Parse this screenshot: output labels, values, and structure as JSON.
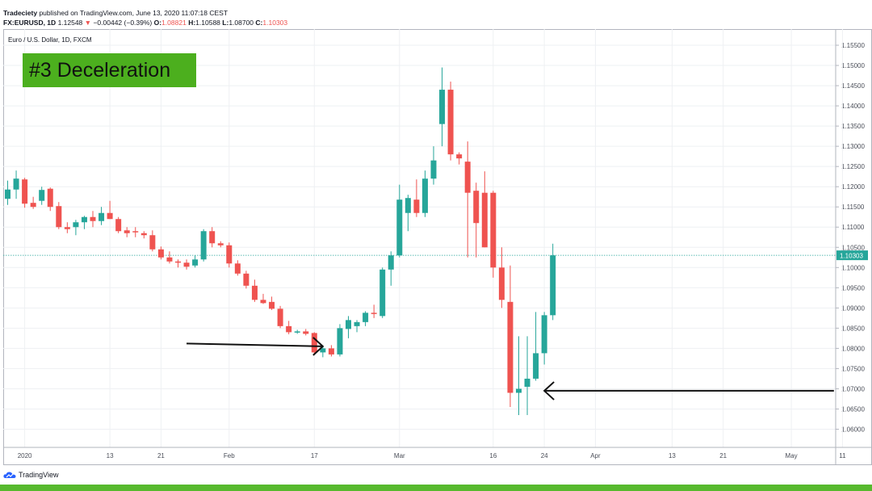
{
  "header": {
    "line1_author": "Tradeciety",
    "line1_rest": "published on TradingView.com, June 13, 2020 11:07:18 CEST",
    "symbol": "FX:EURUSD, 1D",
    "last": "1.12548",
    "change": "−0.00442 (−0.39%)",
    "o_label": "O:",
    "o": "1.08821",
    "h_label": "H:",
    "h": "1.10588",
    "l_label": "L:",
    "l": "1.08700",
    "c_label": "C:",
    "c": "1.10303"
  },
  "symbol_bar": "Euro / U.S. Dollar, 1D, FXCM",
  "annotation_label": "#3 Deceleration",
  "footer_brand": "TradingView",
  "colors": {
    "up": "#26a69a",
    "down": "#ef5350",
    "price_line": "#26a69a",
    "label_bg": "#4caf1e",
    "strip": "#57b92e"
  },
  "chart_data": {
    "type": "candlestick",
    "title": "Euro / U.S. Dollar, 1D, FXCM",
    "ylim": [
      1.0555,
      1.159
    ],
    "y_ticks": [
      "1.15500",
      "1.15000",
      "1.14500",
      "1.14000",
      "1.13500",
      "1.13000",
      "1.12500",
      "1.12000",
      "1.11500",
      "1.11000",
      "1.10500",
      "1.10000",
      "1.09500",
      "1.09000",
      "1.08500",
      "1.08000",
      "1.07500",
      "1.07000",
      "1.06500",
      "1.06000"
    ],
    "x_ticks": [
      {
        "i": 2,
        "label": "2020"
      },
      {
        "i": 12,
        "label": "13"
      },
      {
        "i": 18,
        "label": "21"
      },
      {
        "i": 26,
        "label": "Feb"
      },
      {
        "i": 36,
        "label": "17"
      },
      {
        "i": 46,
        "label": "Mar"
      },
      {
        "i": 57,
        "label": "16"
      },
      {
        "i": 63,
        "label": "24"
      },
      {
        "i": 69,
        "label": "Apr"
      },
      {
        "i": 78,
        "label": "13"
      },
      {
        "i": 84,
        "label": "21"
      },
      {
        "i": 92,
        "label": "May"
      },
      {
        "i": 98,
        "label": "11"
      }
    ],
    "last_price_label": "1.10303",
    "last_price": 1.10303,
    "candles": [
      {
        "o": 1.117,
        "h": 1.1215,
        "l": 1.1155,
        "c": 1.1193
      },
      {
        "o": 1.1193,
        "h": 1.124,
        "l": 1.117,
        "c": 1.122
      },
      {
        "o": 1.1218,
        "h": 1.1222,
        "l": 1.1148,
        "c": 1.1158
      },
      {
        "o": 1.116,
        "h": 1.1175,
        "l": 1.1145,
        "c": 1.115
      },
      {
        "o": 1.1165,
        "h": 1.12,
        "l": 1.1155,
        "c": 1.1192
      },
      {
        "o": 1.1195,
        "h": 1.1198,
        "l": 1.114,
        "c": 1.115
      },
      {
        "o": 1.1152,
        "h": 1.1162,
        "l": 1.1095,
        "c": 1.11
      },
      {
        "o": 1.11,
        "h": 1.1112,
        "l": 1.1085,
        "c": 1.1095
      },
      {
        "o": 1.11,
        "h": 1.1118,
        "l": 1.108,
        "c": 1.1112
      },
      {
        "o": 1.1112,
        "h": 1.1128,
        "l": 1.1095,
        "c": 1.1125
      },
      {
        "o": 1.1125,
        "h": 1.114,
        "l": 1.11,
        "c": 1.1115
      },
      {
        "o": 1.1115,
        "h": 1.115,
        "l": 1.1105,
        "c": 1.1135
      },
      {
        "o": 1.1135,
        "h": 1.1165,
        "l": 1.112,
        "c": 1.112
      },
      {
        "o": 1.112,
        "h": 1.1125,
        "l": 1.1085,
        "c": 1.109
      },
      {
        "o": 1.1092,
        "h": 1.11,
        "l": 1.1075,
        "c": 1.1085
      },
      {
        "o": 1.109,
        "h": 1.11,
        "l": 1.1075,
        "c": 1.1088
      },
      {
        "o": 1.1085,
        "h": 1.109,
        "l": 1.1072,
        "c": 1.108
      },
      {
        "o": 1.108,
        "h": 1.1092,
        "l": 1.104,
        "c": 1.1045
      },
      {
        "o": 1.1045,
        "h": 1.1052,
        "l": 1.102,
        "c": 1.1025
      },
      {
        "o": 1.1025,
        "h": 1.104,
        "l": 1.101,
        "c": 1.1015
      },
      {
        "o": 1.1015,
        "h": 1.102,
        "l": 1.1,
        "c": 1.1012
      },
      {
        "o": 1.1012,
        "h": 1.102,
        "l": 1.0995,
        "c": 1.1002
      },
      {
        "o": 1.1005,
        "h": 1.103,
        "l": 1.1,
        "c": 1.102
      },
      {
        "o": 1.102,
        "h": 1.1095,
        "l": 1.1015,
        "c": 1.109
      },
      {
        "o": 1.109,
        "h": 1.11,
        "l": 1.105,
        "c": 1.106
      },
      {
        "o": 1.106,
        "h": 1.1065,
        "l": 1.105,
        "c": 1.1055
      },
      {
        "o": 1.1055,
        "h": 1.1062,
        "l": 1.1,
        "c": 1.101
      },
      {
        "o": 1.101,
        "h": 1.1018,
        "l": 1.098,
        "c": 1.0985
      },
      {
        "o": 1.0985,
        "h": 1.0992,
        "l": 1.0948,
        "c": 1.0955
      },
      {
        "o": 1.0955,
        "h": 1.097,
        "l": 1.0915,
        "c": 1.092
      },
      {
        "o": 1.092,
        "h": 1.0935,
        "l": 1.091,
        "c": 1.0912
      },
      {
        "o": 1.0915,
        "h": 1.0928,
        "l": 1.0895,
        "c": 1.0898
      },
      {
        "o": 1.0898,
        "h": 1.0905,
        "l": 1.085,
        "c": 1.0855
      },
      {
        "o": 1.0855,
        "h": 1.0868,
        "l": 1.0835,
        "c": 1.084
      },
      {
        "o": 1.084,
        "h": 1.0846,
        "l": 1.0836,
        "c": 1.0842
      },
      {
        "o": 1.0842,
        "h": 1.0848,
        "l": 1.0832,
        "c": 1.0836
      },
      {
        "o": 1.0838,
        "h": 1.084,
        "l": 1.0785,
        "c": 1.079
      },
      {
        "o": 1.079,
        "h": 1.0805,
        "l": 1.0778,
        "c": 1.08
      },
      {
        "o": 1.08,
        "h": 1.0808,
        "l": 1.078,
        "c": 1.0785
      },
      {
        "o": 1.0785,
        "h": 1.086,
        "l": 1.078,
        "c": 1.085
      },
      {
        "o": 1.0848,
        "h": 1.088,
        "l": 1.0825,
        "c": 1.087
      },
      {
        "o": 1.0855,
        "h": 1.087,
        "l": 1.084,
        "c": 1.0865
      },
      {
        "o": 1.0865,
        "h": 1.0892,
        "l": 1.0855,
        "c": 1.0888
      },
      {
        "o": 1.0888,
        "h": 1.0908,
        "l": 1.0875,
        "c": 1.0885
      },
      {
        "o": 1.088,
        "h": 1.1,
        "l": 1.0875,
        "c": 1.0995
      },
      {
        "o": 1.0995,
        "h": 1.104,
        "l": 1.0955,
        "c": 1.103
      },
      {
        "o": 1.103,
        "h": 1.1205,
        "l": 1.1025,
        "c": 1.1168
      },
      {
        "o": 1.1135,
        "h": 1.118,
        "l": 1.109,
        "c": 1.1172
      },
      {
        "o": 1.1168,
        "h": 1.1218,
        "l": 1.1125,
        "c": 1.1135
      },
      {
        "o": 1.1135,
        "h": 1.124,
        "l": 1.1125,
        "c": 1.122
      },
      {
        "o": 1.122,
        "h": 1.13,
        "l": 1.1205,
        "c": 1.1265
      },
      {
        "o": 1.1355,
        "h": 1.1495,
        "l": 1.13,
        "c": 1.144
      },
      {
        "o": 1.144,
        "h": 1.146,
        "l": 1.1265,
        "c": 1.128
      },
      {
        "o": 1.128,
        "h": 1.1285,
        "l": 1.1255,
        "c": 1.127
      },
      {
        "o": 1.1262,
        "h": 1.1312,
        "l": 1.1025,
        "c": 1.1185
      },
      {
        "o": 1.119,
        "h": 1.121,
        "l": 1.1025,
        "c": 1.111
      },
      {
        "o": 1.1185,
        "h": 1.1238,
        "l": 1.105,
        "c": 1.105
      },
      {
        "o": 1.1185,
        "h": 1.119,
        "l": 1.0975,
        "c": 1.1
      },
      {
        "o": 1.1,
        "h": 1.105,
        "l": 1.09,
        "c": 1.092
      },
      {
        "o": 1.0915,
        "h": 1.1005,
        "l": 1.0655,
        "c": 1.069
      },
      {
        "o": 1.069,
        "h": 1.083,
        "l": 1.0635,
        "c": 1.07
      },
      {
        "o": 1.0705,
        "h": 1.083,
        "l": 1.0635,
        "c": 1.0725
      },
      {
        "o": 1.0725,
        "h": 1.089,
        "l": 1.072,
        "c": 1.0788
      },
      {
        "o": 1.0788,
        "h": 1.089,
        "l": 1.076,
        "c": 1.0882
      },
      {
        "o": 1.0882,
        "h": 1.1059,
        "l": 1.087,
        "c": 1.103
      }
    ],
    "annotations": [
      {
        "type": "arrow",
        "description": "black arrow pointing right at February low",
        "from_i": 21,
        "to_i": 37,
        "y": 1.0805
      },
      {
        "type": "arrow",
        "description": "black arrow pointing left at March low",
        "from_i": 97,
        "to_i": 63,
        "y": 1.0695
      }
    ]
  }
}
